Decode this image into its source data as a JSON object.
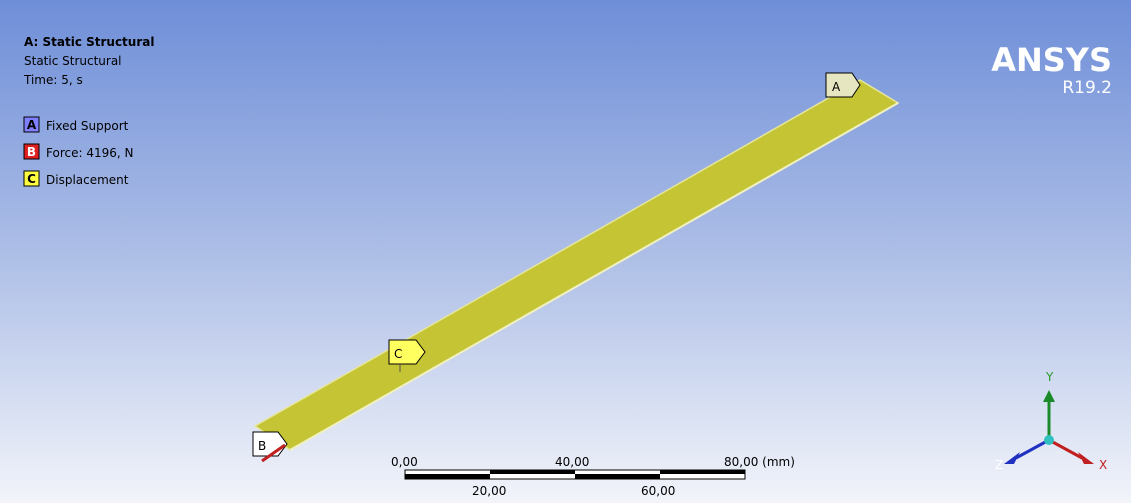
{
  "header": {
    "title": "A: Static Structural",
    "subtitle": "Static Structural",
    "time": "Time: 5, s"
  },
  "legend": [
    {
      "key": "A",
      "label": "Fixed Support"
    },
    {
      "key": "B",
      "label": "Force: 4196, N"
    },
    {
      "key": "C",
      "label": "Displacement"
    }
  ],
  "logo": {
    "brand": "ANSYS",
    "version": "R19.2"
  },
  "model_labels": [
    "A",
    "B",
    "C"
  ],
  "scale_bar": {
    "top": [
      "0,00",
      "40,00",
      "80,00 (mm)"
    ],
    "bottom": [
      "20,00",
      "60,00"
    ]
  },
  "triad": {
    "y": "Y",
    "z": "Z",
    "x": "X"
  }
}
